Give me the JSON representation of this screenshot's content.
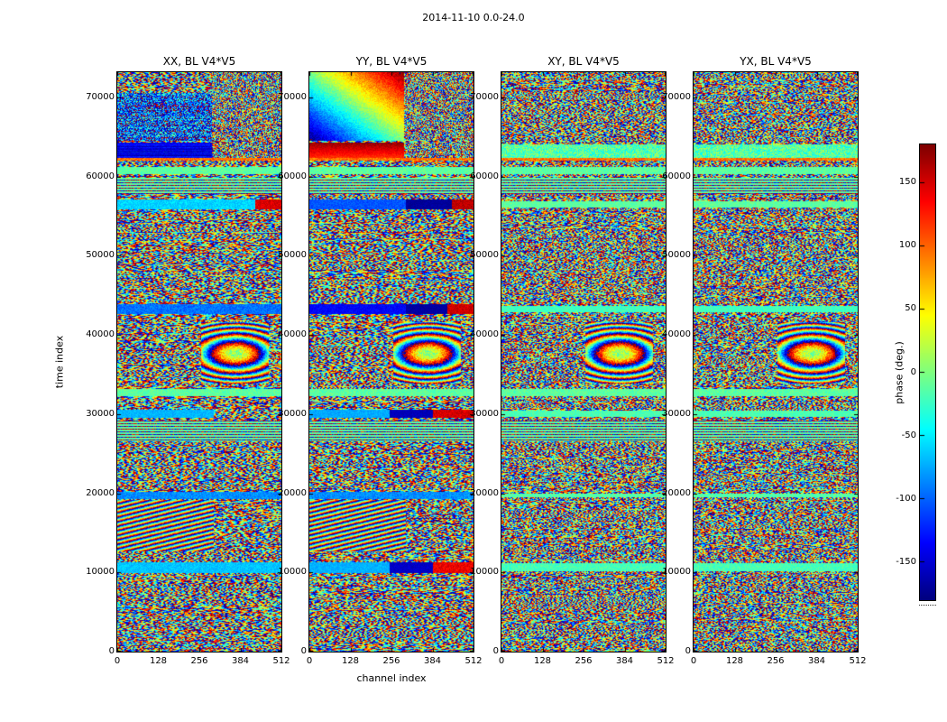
{
  "chart_data": {
    "type": "heatmap",
    "suptitle": "2014-11-10 0.0-24.0",
    "xlabel": "channel index",
    "ylabel": "time index",
    "x_range": [
      0,
      512
    ],
    "y_range": [
      0,
      73200
    ],
    "x_ticks": [
      0,
      128,
      256,
      384,
      512
    ],
    "y_ticks": [
      0,
      10000,
      20000,
      30000,
      40000,
      50000,
      60000,
      70000
    ],
    "colormap": "jet",
    "grid": false,
    "colorbar": {
      "label": "phase (deg.)",
      "range": [
        -180,
        180
      ],
      "ticks": [
        150,
        100,
        50,
        0,
        -50,
        -100,
        -150
      ]
    },
    "panels": [
      {
        "title": "XX, BL V4*V5",
        "seed": 11,
        "grain": 1
      },
      {
        "title": "YY, BL V4*V5",
        "seed": 22,
        "grain": 1
      },
      {
        "title": "XY, BL V4*V5",
        "seed": 33,
        "grain": 1.25
      },
      {
        "title": "YX, BL V4*V5",
        "seed": 44,
        "grain": 1.25
      }
    ],
    "features": [
      {
        "p": [
          0,
          1
        ],
        "type": "stripes",
        "t": [
          12600,
          19100
        ],
        "c": [
          0,
          300
        ],
        "period": 5,
        "slope": 0.25,
        "noise": 55
      },
      {
        "p": [
          0,
          1,
          2,
          3
        ],
        "type": "swirl",
        "t": [
          33900,
          41600
        ],
        "c": [
          262,
          472
        ],
        "cx": 368,
        "ct": 37700,
        "ax": 1400,
        "ay": 320,
        "noise": 70
      },
      {
        "p": [
          0,
          1,
          2,
          3
        ],
        "type": "dotrows",
        "t": [
          26600,
          29200
        ],
        "c": [
          0,
          512
        ]
      },
      {
        "p": [
          0,
          1,
          2,
          3
        ],
        "type": "dotrows",
        "t": [
          57800,
          59900
        ],
        "c": [
          0,
          512
        ]
      },
      {
        "p": [
          0,
          1,
          2,
          3
        ],
        "type": "flat",
        "t": [
          60300,
          61200
        ],
        "c": [
          0,
          512
        ],
        "phase": -12,
        "noise": 30
      },
      {
        "p": [
          0,
          1,
          2,
          3
        ],
        "type": "flat",
        "t": [
          32300,
          33200
        ],
        "c": [
          0,
          512
        ],
        "phase": -12,
        "noise": 30
      },
      {
        "p": [
          0
        ],
        "type": "flat",
        "t": [
          9900,
          11300
        ],
        "c": [
          0,
          512
        ],
        "phase": -65,
        "noise": 26
      },
      {
        "p": [
          1
        ],
        "type": "flat",
        "t": [
          9900,
          11300
        ],
        "c": [
          0,
          250
        ],
        "phase": -72,
        "noise": 20
      },
      {
        "p": [
          1
        ],
        "type": "flat",
        "t": [
          9900,
          11300
        ],
        "c": [
          250,
          385
        ],
        "phase": -155,
        "noise": 18
      },
      {
        "p": [
          1
        ],
        "type": "flat",
        "t": [
          9900,
          11300
        ],
        "c": [
          385,
          512
        ],
        "phase": 140,
        "noise": 35
      },
      {
        "p": [
          2,
          3
        ],
        "type": "flat",
        "t": [
          10100,
          11200
        ],
        "c": [
          0,
          512
        ],
        "phase": -20,
        "noise": 30
      },
      {
        "p": [
          0,
          1
        ],
        "type": "flat",
        "t": [
          19300,
          20200
        ],
        "c": [
          0,
          512
        ],
        "phase": -85,
        "noise": 35
      },
      {
        "p": [
          2,
          3
        ],
        "type": "flat",
        "t": [
          19500,
          20000
        ],
        "c": [
          0,
          512
        ],
        "phase": -15,
        "noise": 26
      },
      {
        "p": [
          0
        ],
        "type": "flat",
        "t": [
          29500,
          30600
        ],
        "c": [
          0,
          300
        ],
        "phase": -70,
        "noise": 22
      },
      {
        "p": [
          1
        ],
        "type": "flat",
        "t": [
          29500,
          30600
        ],
        "c": [
          0,
          250
        ],
        "phase": -75,
        "noise": 20
      },
      {
        "p": [
          1
        ],
        "type": "flat",
        "t": [
          29500,
          30600
        ],
        "c": [
          250,
          385
        ],
        "phase": -160,
        "noise": 16
      },
      {
        "p": [
          1
        ],
        "type": "flat",
        "t": [
          29500,
          30600
        ],
        "c": [
          385,
          512
        ],
        "phase": 150,
        "noise": 30
      },
      {
        "p": [
          2,
          3
        ],
        "type": "flat",
        "t": [
          29700,
          30500
        ],
        "c": [
          0,
          512
        ],
        "phase": -18,
        "noise": 28
      },
      {
        "p": [
          0
        ],
        "type": "flat",
        "t": [
          42700,
          43900
        ],
        "c": [
          0,
          512
        ],
        "phase": -95,
        "noise": 35
      },
      {
        "p": [
          1
        ],
        "type": "flat",
        "t": [
          42700,
          43900
        ],
        "c": [
          0,
          300
        ],
        "phase": -135,
        "noise": 25
      },
      {
        "p": [
          1
        ],
        "type": "flat",
        "t": [
          42700,
          43900
        ],
        "c": [
          300,
          430
        ],
        "phase": -168,
        "noise": 14
      },
      {
        "p": [
          1
        ],
        "type": "flat",
        "t": [
          42700,
          43900
        ],
        "c": [
          430,
          512
        ],
        "phase": 152,
        "noise": 28
      },
      {
        "p": [
          2,
          3
        ],
        "type": "flat",
        "t": [
          42900,
          43700
        ],
        "c": [
          0,
          512
        ],
        "phase": -22,
        "noise": 30
      },
      {
        "p": [
          0
        ],
        "type": "flat",
        "t": [
          55900,
          57100
        ],
        "c": [
          0,
          430
        ],
        "phase": -60,
        "noise": 28
      },
      {
        "p": [
          0
        ],
        "type": "flat",
        "t": [
          55900,
          57100
        ],
        "c": [
          430,
          512
        ],
        "phase": 148,
        "noise": 30
      },
      {
        "p": [
          1
        ],
        "type": "flat",
        "t": [
          55900,
          57100
        ],
        "c": [
          0,
          300
        ],
        "phase": -105,
        "noise": 25
      },
      {
        "p": [
          1
        ],
        "type": "flat",
        "t": [
          55900,
          57100
        ],
        "c": [
          300,
          445
        ],
        "phase": -170,
        "noise": 14
      },
      {
        "p": [
          1
        ],
        "type": "flat",
        "t": [
          55900,
          57100
        ],
        "c": [
          445,
          512
        ],
        "phase": 158,
        "noise": 28
      },
      {
        "p": [
          2,
          3
        ],
        "type": "flat",
        "t": [
          56100,
          56900
        ],
        "c": [
          0,
          512
        ],
        "phase": -12,
        "noise": 26
      },
      {
        "p": [
          0,
          1,
          2,
          3
        ],
        "type": "flat",
        "t": [
          62000,
          62400
        ],
        "c": [
          0,
          512
        ],
        "phase": 95,
        "noise": 45
      },
      {
        "p": [
          0
        ],
        "type": "flat",
        "t": [
          62400,
          64300
        ],
        "c": [
          0,
          295
        ],
        "phase": -148,
        "noise": 28,
        "rowjitter": 45
      },
      {
        "p": [
          1
        ],
        "type": "vgrad",
        "t": [
          62400,
          64300
        ],
        "c": [
          0,
          295
        ],
        "phase0": 115,
        "phase1": 172,
        "noise": 22
      },
      {
        "p": [
          0,
          1
        ],
        "type": "fine",
        "t": [
          62400,
          64300
        ],
        "c": [
          295,
          512
        ]
      },
      {
        "p": [
          2,
          3
        ],
        "type": "flat",
        "t": [
          62400,
          64100
        ],
        "c": [
          0,
          512
        ],
        "phase": -15,
        "noise": 80
      },
      {
        "p": [
          0
        ],
        "type": "flat",
        "t": [
          64500,
          70600
        ],
        "c": [
          0,
          295
        ],
        "phase": -110,
        "noise": 200,
        "rowjitter": 60
      },
      {
        "p": [
          1
        ],
        "type": "grad2",
        "t": [
          64500,
          73200
        ],
        "c": [
          0,
          295
        ],
        "phase00": -178,
        "phase11": 178,
        "noise": 35
      },
      {
        "p": [
          0,
          1
        ],
        "type": "fine",
        "t": [
          64500,
          73200
        ],
        "c": [
          295,
          512
        ]
      }
    ]
  }
}
